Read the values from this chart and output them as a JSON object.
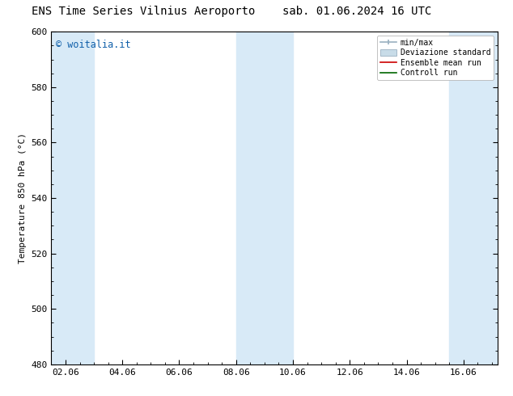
{
  "title_left": "ENS Time Series Vilnius Aeroporto",
  "title_right": "sab. 01.06.2024 16 UTC",
  "ylabel": "Temperature 850 hPa (°C)",
  "ylim": [
    480,
    600
  ],
  "yticks": [
    480,
    500,
    520,
    540,
    560,
    580,
    600
  ],
  "xtick_labels": [
    "02.06",
    "04.06",
    "06.06",
    "08.06",
    "10.06",
    "12.06",
    "14.06",
    "16.06"
  ],
  "xtick_positions": [
    2,
    4,
    6,
    8,
    10,
    12,
    14,
    16
  ],
  "xlim": [
    1.5,
    17.2
  ],
  "shaded_bands": [
    {
      "x_start": 1.5,
      "x_end": 3.0
    },
    {
      "x_start": 8.0,
      "x_end": 10.0
    },
    {
      "x_start": 15.5,
      "x_end": 17.2
    }
  ],
  "band_color": "#d8eaf7",
  "background_color": "#ffffff",
  "watermark": "© woitalia.it",
  "watermark_color": "#1060aa",
  "watermark_fontsize": 8.5,
  "legend_items": [
    "min/max",
    "Deviazione standard",
    "Ensemble mean run",
    "Controll run"
  ],
  "title_fontsize": 10,
  "axis_fontsize": 8,
  "tick_fontsize": 8,
  "fig_width": 6.34,
  "fig_height": 4.9,
  "dpi": 100
}
